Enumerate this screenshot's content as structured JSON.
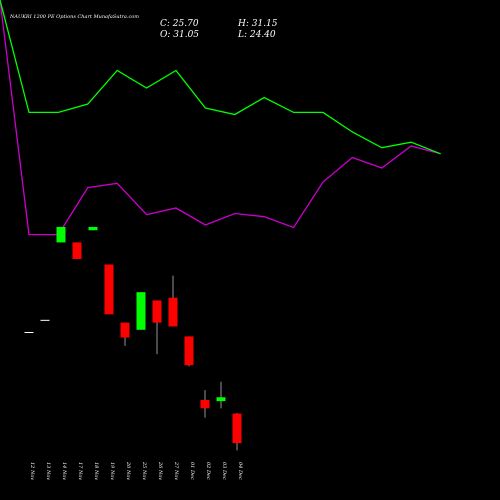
{
  "chart_data": {
    "type": "candlestick",
    "title": "NAUKRI 1200  PE Options  Chart MunafaSutra.com",
    "ohlc_readout": {
      "c_label": "C: 25.70",
      "o_label": "O: 31.05",
      "h_label": "H: 31.15",
      "l_label": "L: 24.40"
    },
    "categories": [
      "12 Nov",
      "13 Nov",
      "14 Nov",
      "17 Nov",
      "18 Nov",
      "19 Nov",
      "20 Nov",
      "25 Nov",
      "26 Nov",
      "27 Nov",
      "01 Dec",
      "02 Dec",
      "03 Dec",
      "04 Dec"
    ],
    "candles": [
      {
        "open": 45.8,
        "high": 45.8,
        "low": 45.8,
        "close": 45.8
      },
      {
        "open": 48.0,
        "high": 48.0,
        "low": 48.0,
        "close": 48.0
      },
      {
        "open": 62.0,
        "high": 64.8,
        "low": 62.0,
        "close": 64.8
      },
      {
        "open": 62.0,
        "high": 62.0,
        "low": 59.0,
        "close": 59.0
      },
      {
        "open": 64.2,
        "high": 64.8,
        "low": 64.2,
        "close": 64.8
      },
      {
        "open": 58.0,
        "high": 58.0,
        "low": 49.0,
        "close": 49.0
      },
      {
        "open": 47.5,
        "high": 47.5,
        "low": 43.3,
        "close": 44.8
      },
      {
        "open": 46.2,
        "high": 53.0,
        "low": 46.2,
        "close": 53.0
      },
      {
        "open": 51.5,
        "high": 51.5,
        "low": 41.8,
        "close": 47.5
      },
      {
        "open": 52.0,
        "high": 56.0,
        "low": 46.8,
        "close": 46.8
      },
      {
        "open": 45.0,
        "high": 45.0,
        "low": 39.6,
        "close": 39.8
      },
      {
        "open": 33.5,
        "high": 35.3,
        "low": 30.3,
        "close": 32.0
      },
      {
        "open": 33.3,
        "high": 36.8,
        "low": 32.0,
        "close": 34.0
      },
      {
        "open": 31.05,
        "high": 31.15,
        "low": 24.4,
        "close": 25.7
      }
    ],
    "green_line_index": [
      0,
      112.4,
      112.4,
      104,
      70.5,
      88,
      70.5,
      108,
      114.5,
      97.5,
      112.4,
      112.4,
      132,
      147.7,
      142.2,
      153.8
    ],
    "purple_line_index": [
      0,
      234.6,
      234.6,
      187.6,
      183.3,
      214.6,
      208,
      225,
      213.5,
      216.7,
      227.5,
      182,
      157.5,
      168,
      146,
      153.8
    ],
    "colors": {
      "background": "#000000",
      "up": "#00ff00",
      "down": "#ff0000",
      "line_upper": "#00ff00",
      "line_lower": "#cc00cc",
      "text": "#ffffff"
    }
  }
}
